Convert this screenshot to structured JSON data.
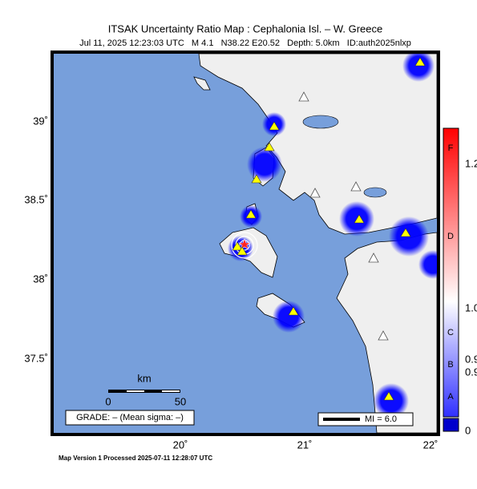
{
  "header": {
    "title": "ITSAK Uncertainty Ratio Map : Cephalonia Isl. – W. Greece",
    "subtitle": "Jul 11, 2025 12:23:03 UTC   M 4.1   N38.22 E20.52   Depth: 5.0km   ID:auth2025nlxp"
  },
  "map": {
    "lat_labels": [
      "39˚",
      "38.5˚",
      "38˚",
      "37.5˚"
    ],
    "lon_labels": [
      "20˚",
      "21˚",
      "22˚"
    ],
    "scale": {
      "unit": "km",
      "labels": [
        "0",
        "50"
      ]
    },
    "grade": "GRADE: – (Mean sigma: –)",
    "legend": "MI = 6.0"
  },
  "colorbar": {
    "grades": [
      "F",
      "D",
      "C",
      "B",
      "A"
    ],
    "labels": [
      "1.2",
      "1.0",
      "0.9",
      "0.9",
      "0"
    ]
  },
  "footer": "Map Version 1 Processed 2025-07-11 12:28:07 UTC"
}
